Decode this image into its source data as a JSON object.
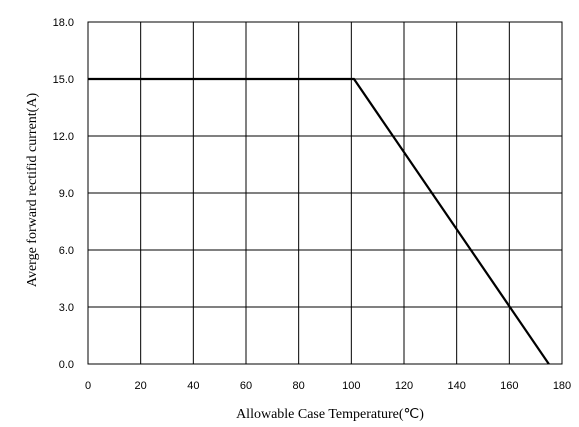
{
  "chart_data": {
    "type": "line",
    "title": "",
    "xlabel": "Allowable Case Temperature(℃)",
    "ylabel": "Averge forward rectifid current(A)",
    "xlim": [
      0,
      180
    ],
    "ylim": [
      0,
      18
    ],
    "x_ticks": [
      0,
      20,
      40,
      60,
      80,
      100,
      120,
      140,
      160,
      180
    ],
    "y_ticks": [
      0.0,
      3.0,
      6.0,
      9.0,
      12.0,
      15.0,
      18.0
    ],
    "x_tick_labels": [
      "0",
      "20",
      "40",
      "60",
      "80",
      "100",
      "120",
      "140",
      "160",
      "180"
    ],
    "y_tick_labels": [
      "0.0",
      "3.0",
      "6.0",
      "9.0",
      "12.0",
      "15.0",
      "18.0"
    ],
    "grid": true,
    "legend": "none",
    "series": [
      {
        "x": [
          0,
          101,
          175
        ],
        "y": [
          15.0,
          15.0,
          0.0
        ],
        "color": "#000000"
      }
    ]
  }
}
